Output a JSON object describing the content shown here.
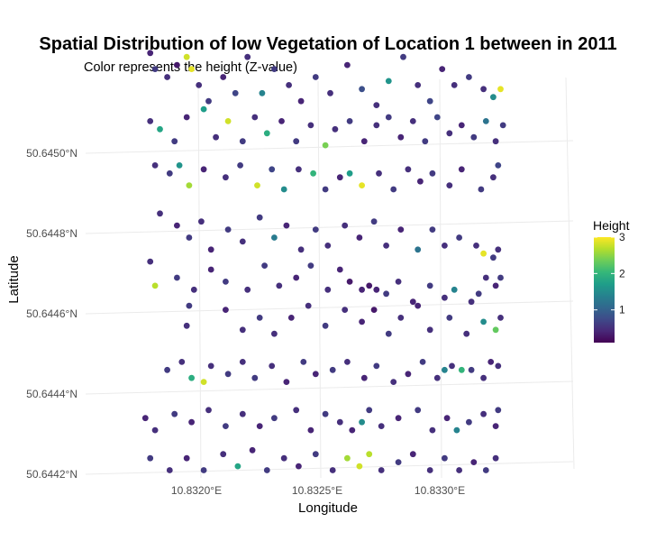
{
  "chart_data": {
    "type": "scatter",
    "title": "Spatial Distribution of low Vegetation of Location 1 between in 2011",
    "subtitle": "Color represents the height (Z-value)",
    "xlabel": "Longitude",
    "ylabel": "Latitude",
    "xlim": [
      10.83155,
      10.83345
    ],
    "ylim": [
      50.64418,
      50.64529
    ],
    "x_ticks": [
      10.832,
      10.8325,
      10.833
    ],
    "x_tick_labels": [
      "10.8320°E",
      "10.8325°E",
      "10.8330°E"
    ],
    "y_ticks": [
      50.6442,
      50.6444,
      50.6446,
      50.6448,
      50.645
    ],
    "y_tick_labels": [
      "50.6442°N",
      "50.6444°N",
      "50.6446°N",
      "50.6448°N",
      "50.6450°N"
    ],
    "grid": true,
    "legend": {
      "title": "Height",
      "position": "right",
      "ticks": [
        1,
        2,
        3
      ],
      "tick_labels": [
        "1",
        "2",
        "3"
      ],
      "range": [
        0.1,
        3.0
      ],
      "colormap": "viridis"
    },
    "colors": {
      "viridis": [
        "#440154",
        "#482878",
        "#3E4A89",
        "#31688E",
        "#26828E",
        "#1F9E89",
        "#35B779",
        "#6DCD59",
        "#B4DE2C",
        "#FDE725"
      ],
      "gridline": "#ebebeb",
      "tick_text": "#4d4d4d"
    },
    "points": [
      [
        10.83181,
        50.64525,
        0.4
      ],
      [
        10.83183,
        50.64521,
        0.6
      ],
      [
        10.83188,
        50.64519,
        0.5
      ],
      [
        10.83192,
        50.64522,
        0.3
      ],
      [
        10.83196,
        50.64524,
        2.8
      ],
      [
        10.83198,
        50.64521,
        2.9
      ],
      [
        10.83201,
        50.64517,
        0.5
      ],
      [
        10.83205,
        50.64513,
        0.6
      ],
      [
        10.83211,
        50.64519,
        0.4
      ],
      [
        10.83216,
        50.64515,
        0.7
      ],
      [
        10.83221,
        50.64524,
        0.5
      ],
      [
        10.83227,
        50.64515,
        1.4
      ],
      [
        10.83232,
        50.64521,
        0.6
      ],
      [
        10.83238,
        50.64517,
        0.5
      ],
      [
        10.83243,
        50.64513,
        0.4
      ],
      [
        10.83249,
        50.64519,
        0.6
      ],
      [
        10.83255,
        50.64515,
        0.5
      ],
      [
        10.83262,
        50.64522,
        0.4
      ],
      [
        10.83268,
        50.64516,
        0.8
      ],
      [
        10.83274,
        50.64512,
        0.5
      ],
      [
        10.83279,
        50.64518,
        1.6
      ],
      [
        10.83285,
        50.64524,
        0.6
      ],
      [
        10.83291,
        50.64517,
        0.5
      ],
      [
        10.83296,
        50.64513,
        0.7
      ],
      [
        10.83301,
        50.64521,
        0.4
      ],
      [
        10.83306,
        50.64517,
        0.5
      ],
      [
        10.83312,
        50.64519,
        0.6
      ],
      [
        10.83318,
        50.64516,
        0.5
      ],
      [
        10.83322,
        50.64514,
        1.5
      ],
      [
        10.83325,
        50.64516,
        2.9
      ],
      [
        10.83181,
        50.64508,
        0.5
      ],
      [
        10.83185,
        50.64506,
        1.8
      ],
      [
        10.83191,
        50.64503,
        0.6
      ],
      [
        10.83196,
        50.64509,
        0.4
      ],
      [
        10.83203,
        50.64511,
        1.7
      ],
      [
        10.83208,
        50.64504,
        0.5
      ],
      [
        10.83213,
        50.64508,
        2.8
      ],
      [
        10.83219,
        50.64503,
        0.6
      ],
      [
        10.83224,
        50.64509,
        0.5
      ],
      [
        10.83229,
        50.64505,
        1.9
      ],
      [
        10.83235,
        50.64508,
        0.4
      ],
      [
        10.83241,
        50.64503,
        0.6
      ],
      [
        10.83247,
        50.64507,
        0.5
      ],
      [
        10.83253,
        50.64502,
        2.4
      ],
      [
        10.83257,
        50.64506,
        0.5
      ],
      [
        10.83263,
        50.64508,
        0.6
      ],
      [
        10.83269,
        50.64503,
        0.4
      ],
      [
        10.83274,
        50.64507,
        0.5
      ],
      [
        10.83279,
        50.64509,
        0.6
      ],
      [
        10.83284,
        50.64504,
        0.4
      ],
      [
        10.83289,
        50.64508,
        0.5
      ],
      [
        10.83294,
        50.64503,
        0.6
      ],
      [
        10.83299,
        50.64509,
        0.7
      ],
      [
        10.83304,
        50.64505,
        0.5
      ],
      [
        10.83309,
        50.64507,
        0.4
      ],
      [
        10.83314,
        50.64504,
        0.6
      ],
      [
        10.83319,
        50.64508,
        1.2
      ],
      [
        10.83323,
        50.64503,
        0.5
      ],
      [
        10.83326,
        50.64507,
        0.6
      ],
      [
        10.83183,
        50.64497,
        0.5
      ],
      [
        10.83189,
        50.64495,
        0.6
      ],
      [
        10.83193,
        50.64497,
        1.6
      ],
      [
        10.83197,
        50.64492,
        2.6
      ],
      [
        10.83203,
        50.64496,
        0.4
      ],
      [
        10.83212,
        50.64494,
        0.5
      ],
      [
        10.83218,
        50.64497,
        0.6
      ],
      [
        10.83225,
        50.64492,
        2.8
      ],
      [
        10.83231,
        50.64496,
        0.7
      ],
      [
        10.83236,
        50.64491,
        1.5
      ],
      [
        10.83242,
        50.64496,
        0.5
      ],
      [
        10.83248,
        50.64495,
        2.0
      ],
      [
        10.83253,
        50.64491,
        0.6
      ],
      [
        10.83259,
        50.64494,
        0.4
      ],
      [
        10.83263,
        50.64495,
        1.7
      ],
      [
        10.83268,
        50.64492,
        2.9
      ],
      [
        10.83275,
        50.64495,
        0.5
      ],
      [
        10.83281,
        50.64491,
        0.6
      ],
      [
        10.83287,
        50.64496,
        0.5
      ],
      [
        10.83292,
        50.64493,
        0.4
      ],
      [
        10.83297,
        50.64495,
        0.6
      ],
      [
        10.83304,
        50.64492,
        0.5
      ],
      [
        10.83309,
        50.64496,
        0.4
      ],
      [
        10.83317,
        50.64491,
        0.6
      ],
      [
        10.83322,
        50.64494,
        0.5
      ],
      [
        10.83324,
        50.64497,
        0.7
      ],
      [
        10.83185,
        50.64485,
        0.5
      ],
      [
        10.83192,
        50.64482,
        0.4
      ],
      [
        10.83197,
        50.64479,
        0.6
      ],
      [
        10.83202,
        50.64483,
        0.5
      ],
      [
        10.83206,
        50.64476,
        0.4
      ],
      [
        10.83213,
        50.64481,
        0.6
      ],
      [
        10.83219,
        50.64478,
        0.5
      ],
      [
        10.83226,
        50.64484,
        0.6
      ],
      [
        10.83232,
        50.64479,
        1.3
      ],
      [
        10.83237,
        50.64482,
        0.4
      ],
      [
        10.83243,
        50.64476,
        0.5
      ],
      [
        10.83249,
        50.64481,
        0.6
      ],
      [
        10.83254,
        50.64477,
        0.5
      ],
      [
        10.83261,
        50.64482,
        0.5
      ],
      [
        10.83267,
        50.64479,
        0.4
      ],
      [
        10.83273,
        50.64483,
        0.6
      ],
      [
        10.83278,
        50.64477,
        0.5
      ],
      [
        10.83284,
        50.64481,
        0.4
      ],
      [
        10.83291,
        50.64476,
        1.2
      ],
      [
        10.83297,
        50.64481,
        0.6
      ],
      [
        10.83302,
        50.64477,
        0.5
      ],
      [
        10.83308,
        50.64479,
        0.6
      ],
      [
        10.83315,
        50.64477,
        0.5
      ],
      [
        10.83318,
        50.64475,
        2.9
      ],
      [
        10.83322,
        50.64474,
        0.6
      ],
      [
        10.83324,
        50.64476,
        0.5
      ],
      [
        10.83181,
        50.64473,
        0.5
      ],
      [
        10.83183,
        50.64467,
        2.7
      ],
      [
        10.83192,
        50.64469,
        0.6
      ],
      [
        10.83199,
        50.64466,
        0.5
      ],
      [
        10.83206,
        50.64471,
        0.4
      ],
      [
        10.83212,
        50.64468,
        0.6
      ],
      [
        10.83221,
        50.64466,
        0.5
      ],
      [
        10.83228,
        50.64472,
        0.6
      ],
      [
        10.83234,
        50.64467,
        0.5
      ],
      [
        10.83241,
        50.64469,
        0.4
      ],
      [
        10.83247,
        50.64472,
        0.6
      ],
      [
        10.83254,
        50.64466,
        0.5
      ],
      [
        10.83259,
        50.64471,
        0.4
      ],
      [
        10.83263,
        50.64468,
        0.3
      ],
      [
        10.83268,
        50.64466,
        0.4
      ],
      [
        10.83271,
        50.64467,
        0.3
      ],
      [
        10.83274,
        50.64466,
        0.4
      ],
      [
        10.83278,
        50.64465,
        0.6
      ],
      [
        10.83283,
        50.64468,
        0.5
      ],
      [
        10.83289,
        50.64463,
        0.4
      ],
      [
        10.83296,
        50.64467,
        0.6
      ],
      [
        10.83302,
        50.64464,
        0.5
      ],
      [
        10.83306,
        50.64466,
        1.4
      ],
      [
        10.83313,
        50.64463,
        0.5
      ],
      [
        10.83316,
        50.64465,
        0.6
      ],
      [
        10.83319,
        50.64469,
        0.5
      ],
      [
        10.83323,
        50.64467,
        0.4
      ],
      [
        10.83325,
        50.64469,
        0.6
      ],
      [
        10.83196,
        50.64457,
        0.5
      ],
      [
        10.83197,
        50.64462,
        0.6
      ],
      [
        10.83212,
        50.64461,
        0.4
      ],
      [
        10.83219,
        50.64456,
        0.5
      ],
      [
        10.83226,
        50.64459,
        0.6
      ],
      [
        10.83232,
        50.64455,
        0.5
      ],
      [
        10.83239,
        50.64459,
        0.4
      ],
      [
        10.83246,
        50.64462,
        0.5
      ],
      [
        10.83253,
        50.64457,
        0.6
      ],
      [
        10.83261,
        50.64461,
        0.5
      ],
      [
        10.83268,
        50.64458,
        0.4
      ],
      [
        10.83273,
        50.64461,
        0.3
      ],
      [
        10.83279,
        50.64455,
        0.6
      ],
      [
        10.83284,
        50.64459,
        0.5
      ],
      [
        10.83291,
        50.64462,
        0.4
      ],
      [
        10.83296,
        50.64456,
        0.5
      ],
      [
        10.83304,
        50.64459,
        0.6
      ],
      [
        10.83311,
        50.64455,
        0.5
      ],
      [
        10.83318,
        50.64458,
        1.5
      ],
      [
        10.83323,
        50.64456,
        2.3
      ],
      [
        10.83325,
        50.64459,
        0.5
      ],
      [
        10.83188,
        50.64446,
        0.6
      ],
      [
        10.83194,
        50.64448,
        0.5
      ],
      [
        10.83198,
        50.64444,
        1.9
      ],
      [
        10.83203,
        50.64443,
        2.8
      ],
      [
        10.83206,
        50.64447,
        0.5
      ],
      [
        10.83213,
        50.64445,
        0.6
      ],
      [
        10.83219,
        50.64448,
        0.5
      ],
      [
        10.83224,
        50.64444,
        0.6
      ],
      [
        10.83231,
        50.64447,
        0.5
      ],
      [
        10.83237,
        50.64443,
        0.4
      ],
      [
        10.83244,
        50.64448,
        0.6
      ],
      [
        10.83249,
        50.64445,
        0.4
      ],
      [
        10.83256,
        50.64446,
        0.6
      ],
      [
        10.83262,
        50.64448,
        0.5
      ],
      [
        10.83269,
        50.64444,
        0.4
      ],
      [
        10.83274,
        50.64447,
        0.6
      ],
      [
        10.83281,
        50.64443,
        0.5
      ],
      [
        10.83287,
        50.64445,
        0.4
      ],
      [
        10.83293,
        50.64448,
        0.6
      ],
      [
        10.83299,
        50.64444,
        0.5
      ],
      [
        10.83302,
        50.64446,
        1.4
      ],
      [
        10.83305,
        50.64447,
        0.5
      ],
      [
        10.83309,
        50.64446,
        2.0
      ],
      [
        10.83313,
        50.64446,
        0.6
      ],
      [
        10.83318,
        50.64444,
        0.5
      ],
      [
        10.83321,
        50.64448,
        0.4
      ],
      [
        10.83324,
        50.64447,
        0.5
      ],
      [
        10.83179,
        50.64434,
        0.4
      ],
      [
        10.83183,
        50.64431,
        0.5
      ],
      [
        10.83191,
        50.64435,
        0.6
      ],
      [
        10.83198,
        50.64433,
        0.4
      ],
      [
        10.83205,
        50.64436,
        0.5
      ],
      [
        10.83212,
        50.64432,
        0.6
      ],
      [
        10.83219,
        50.64435,
        0.5
      ],
      [
        10.83226,
        50.64432,
        0.4
      ],
      [
        10.83232,
        50.64434,
        0.6
      ],
      [
        10.83241,
        50.64436,
        0.5
      ],
      [
        10.83247,
        50.64431,
        0.4
      ],
      [
        10.83253,
        50.64435,
        0.6
      ],
      [
        10.83259,
        50.64433,
        0.5
      ],
      [
        10.83264,
        50.64431,
        0.4
      ],
      [
        10.83268,
        50.64433,
        1.5
      ],
      [
        10.83271,
        50.64436,
        0.6
      ],
      [
        10.83276,
        50.64432,
        0.5
      ],
      [
        10.83283,
        50.64434,
        0.4
      ],
      [
        10.83291,
        50.64436,
        0.6
      ],
      [
        10.83297,
        50.64431,
        0.5
      ],
      [
        10.83303,
        50.64434,
        0.4
      ],
      [
        10.83307,
        50.64431,
        1.4
      ],
      [
        10.83312,
        50.64433,
        0.6
      ],
      [
        10.83318,
        50.64435,
        0.5
      ],
      [
        10.83323,
        50.64432,
        0.4
      ],
      [
        10.83324,
        50.64436,
        0.6
      ],
      [
        10.83181,
        50.64424,
        0.6
      ],
      [
        10.83189,
        50.64421,
        0.5
      ],
      [
        10.83196,
        50.64424,
        0.4
      ],
      [
        10.83203,
        50.64421,
        0.6
      ],
      [
        10.83211,
        50.64425,
        0.5
      ],
      [
        10.83217,
        50.64422,
        1.8
      ],
      [
        10.83223,
        50.64426,
        0.4
      ],
      [
        10.83229,
        50.64421,
        0.6
      ],
      [
        10.83236,
        50.64424,
        0.5
      ],
      [
        10.83242,
        50.64422,
        0.4
      ],
      [
        10.83249,
        50.64425,
        0.6
      ],
      [
        10.83256,
        50.64421,
        0.5
      ],
      [
        10.83262,
        50.64424,
        2.6
      ],
      [
        10.83267,
        50.64422,
        2.8
      ],
      [
        10.83271,
        50.64425,
        2.7
      ],
      [
        10.83276,
        50.64421,
        0.5
      ],
      [
        10.83283,
        50.64423,
        0.6
      ],
      [
        10.83289,
        50.64425,
        0.4
      ],
      [
        10.83296,
        50.64421,
        0.5
      ],
      [
        10.83302,
        50.64424,
        0.6
      ],
      [
        10.83308,
        50.64421,
        0.5
      ],
      [
        10.83314,
        50.64423,
        0.4
      ],
      [
        10.83319,
        50.64421,
        0.6
      ],
      [
        10.83323,
        50.64424,
        0.5
      ]
    ]
  }
}
